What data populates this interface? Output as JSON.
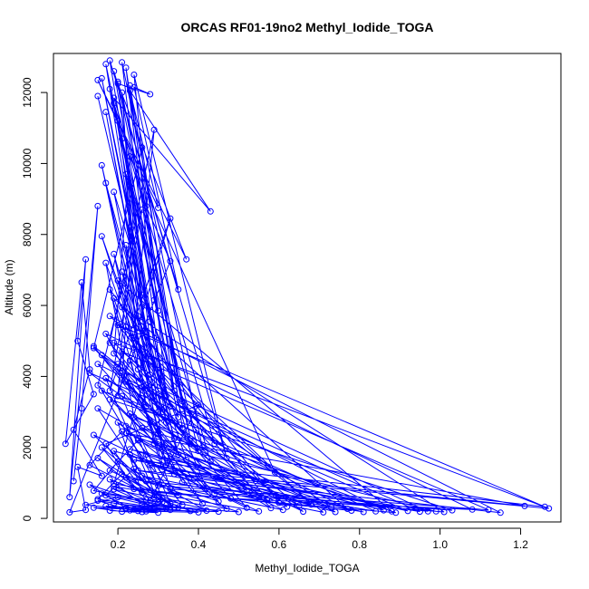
{
  "chart_data": {
    "type": "line",
    "title": "ORCAS RF01-19no2 Methyl_Iodide_TOGA",
    "xlabel": "Methyl_Iodide_TOGA",
    "ylabel": "Altitude (m)",
    "xlim": [
      0.04,
      1.3
    ],
    "ylim": [
      -100,
      13100
    ],
    "x_ticks": [
      0.2,
      0.4,
      0.6,
      0.8,
      1.0,
      1.2
    ],
    "x_tick_labels": [
      "0.2",
      "0.4",
      "0.6",
      "0.8",
      "1.0",
      "1.2"
    ],
    "y_ticks": [
      0,
      2000,
      4000,
      6000,
      8000,
      10000,
      12000
    ],
    "y_tick_labels": [
      "0",
      "2000",
      "4000",
      "6000",
      "8000",
      "10000",
      "12000"
    ],
    "grid": false,
    "color": "#0000ff",
    "marker": "open-circle",
    "series": [
      {
        "x": [
          0.26,
          0.18,
          0.3,
          0.22,
          0.14,
          0.21,
          0.33,
          0.17,
          0.25,
          0.4,
          0.19,
          0.28,
          0.15,
          0.23,
          0.35,
          0.2,
          0.12,
          0.27,
          0.31,
          0.16,
          0.24,
          0.45,
          0.19,
          0.29,
          0.13,
          0.22,
          0.38,
          0.18,
          0.26,
          0.5,
          0.21,
          0.15,
          0.32,
          0.24,
          0.17,
          0.28,
          0.42,
          0.2,
          0.14,
          0.3,
          0.23,
          0.55,
          0.19,
          0.27,
          0.16,
          0.34,
          0.22,
          0.61,
          0.25,
          0.18,
          0.36,
          0.21,
          0.13,
          0.29,
          0.47,
          0.2,
          0.26,
          0.15,
          0.33,
          0.23,
          0.74,
          0.19,
          0.28,
          0.4,
          0.17,
          0.24,
          0.78,
          0.21,
          0.31,
          0.14,
          0.52,
          0.26,
          0.19,
          0.35,
          0.22,
          0.66,
          0.17,
          0.29,
          0.89,
          0.24,
          0.41,
          0.2,
          0.97,
          0.27,
          0.15,
          0.58,
          0.23,
          0.33,
          1.03,
          0.18,
          0.45,
          0.26,
          0.71,
          0.21,
          1.12,
          0.3,
          0.16,
          0.84,
          0.25,
          1.27,
          0.19,
          0.62,
          0.28,
          0.95,
          0.22,
          0.48,
          1.08,
          0.17,
          0.36,
          0.81,
          0.24,
          1.26,
          0.2,
          0.55,
          0.13,
          0.92,
          0.27,
          0.39,
          1.15,
          0.18,
          0.68,
          0.23,
          0.86,
          0.15,
          0.44,
          1.01,
          0.21,
          0.6,
          0.29,
          0.77,
          0.19,
          0.34,
          0.99,
          0.25,
          0.52,
          0.16,
          0.73,
          0.22,
          1.21,
          0.31,
          0.18,
          0.57,
          0.26,
          0.88,
          0.2,
          0.42,
          0.14,
          0.65,
          0.28,
          0.32,
          0.21,
          0.37,
          0.24,
          0.17,
          0.3,
          0.19,
          0.27,
          0.22,
          0.35,
          0.16,
          0.29,
          0.23,
          0.2,
          0.33,
          0.18,
          0.26,
          0.15,
          0.31,
          0.24,
          0.21,
          0.38,
          0.19,
          0.28,
          0.17,
          0.34,
          0.25,
          0.22,
          0.43,
          0.2,
          0.3,
          0.16,
          0.27,
          0.59,
          0.23,
          0.19,
          0.36,
          0.26,
          0.14,
          0.32,
          0.21,
          0.4,
          0.18,
          0.29,
          0.24,
          0.35,
          0.2,
          0.27,
          0.17,
          0.31,
          0.22,
          0.44,
          0.19,
          0.28,
          0.15,
          0.33,
          0.25,
          0.21,
          0.38,
          0.18,
          0.3,
          0.23,
          0.36,
          0.2,
          0.27,
          0.16,
          0.32,
          0.24,
          0.47,
          0.19,
          0.29,
          0.22,
          0.34,
          0.17,
          0.26,
          0.41,
          0.21,
          0.31,
          0.18,
          0.35,
          0.24,
          0.28,
          0.2,
          0.37,
          0.15,
          0.3,
          0.23,
          0.43,
          0.19,
          0.27,
          0.33,
          0.08,
          0.12,
          0.1,
          0.16,
          0.09,
          0.13,
          0.11,
          0.07,
          0.14,
          0.1,
          0.12,
          0.08,
          0.15,
          0.11,
          0.09
        ],
        "y": [
          180,
          220,
          160,
          260,
          300,
          190,
          240,
          350,
          210,
          170,
          420,
          280,
          500,
          230,
          310,
          600,
          380,
          200,
          460,
          700,
          250,
          190,
          820,
          330,
          950,
          290,
          210,
          1100,
          400,
          180,
          1250,
          540,
          270,
          1400,
          650,
          360,
          220,
          1600,
          780,
          450,
          1800,
          200,
          900,
          520,
          2000,
          310,
          1150,
          240,
          2200,
          1350,
          380,
          2450,
          1500,
          600,
          270,
          2700,
          720,
          1700,
          430,
          2950,
          180,
          1900,
          500,
          3200,
          2100,
          830,
          220,
          3450,
          560,
          2350,
          300,
          3700,
          980,
          650,
          2600,
          190,
          3950,
          740,
          160,
          2850,
          410,
          4200,
          200,
          1050,
          3100,
          290,
          4450,
          830,
          230,
          3350,
          480,
          1200,
          170,
          4700,
          240,
          920,
          3600,
          200,
          1350,
          280,
          4950,
          330,
          1500,
          190,
          3850,
          560,
          250,
          5200,
          1020,
          180,
          1650,
          330,
          5450,
          620,
          4100,
          210,
          1800,
          1120,
          160,
          5700,
          390,
          1950,
          230,
          4350,
          700,
          180,
          5950,
          440,
          2100,
          270,
          6200,
          1250,
          200,
          2250,
          780,
          4600,
          310,
          2400,
          350,
          1380,
          6450,
          520,
          2550,
          200,
          6700,
          850,
          4850,
          360,
          2700,
          1500,
          6950,
          1650,
          2850,
          7200,
          3000,
          7450,
          3150,
          7700,
          1800,
          7950,
          3300,
          8200,
          3450,
          8450,
          3600,
          8700,
          3750,
          1950,
          8950,
          3900,
          2100,
          9200,
          4050,
          9450,
          2250,
          4200,
          9700,
          1600,
          4350,
          2400,
          9950,
          4500,
          1300,
          10200,
          4650,
          2550,
          10450,
          4800,
          2700,
          10700,
          1900,
          4950,
          10950,
          5100,
          2850,
          11200,
          5250,
          11450,
          3000,
          5400,
          2100,
          11700,
          5550,
          11900,
          3150,
          5700,
          12000,
          2250,
          12100,
          5850,
          12200,
          3300,
          12300,
          6000,
          12400,
          3450,
          12500,
          1700,
          12600,
          6150,
          12700,
          3600,
          12800,
          6300,
          2000,
          12850,
          3750,
          12900,
          6450,
          12150,
          11950,
          12250,
          7300,
          12350,
          8750,
          12050,
          8650,
          11850,
          8800,
          7250,
          170,
          240,
          1450,
          1200,
          2500,
          4200,
          6650,
          2100,
          3500,
          5000,
          7300,
          600,
          8800,
          3100,
          1050
        ]
      }
    ]
  }
}
